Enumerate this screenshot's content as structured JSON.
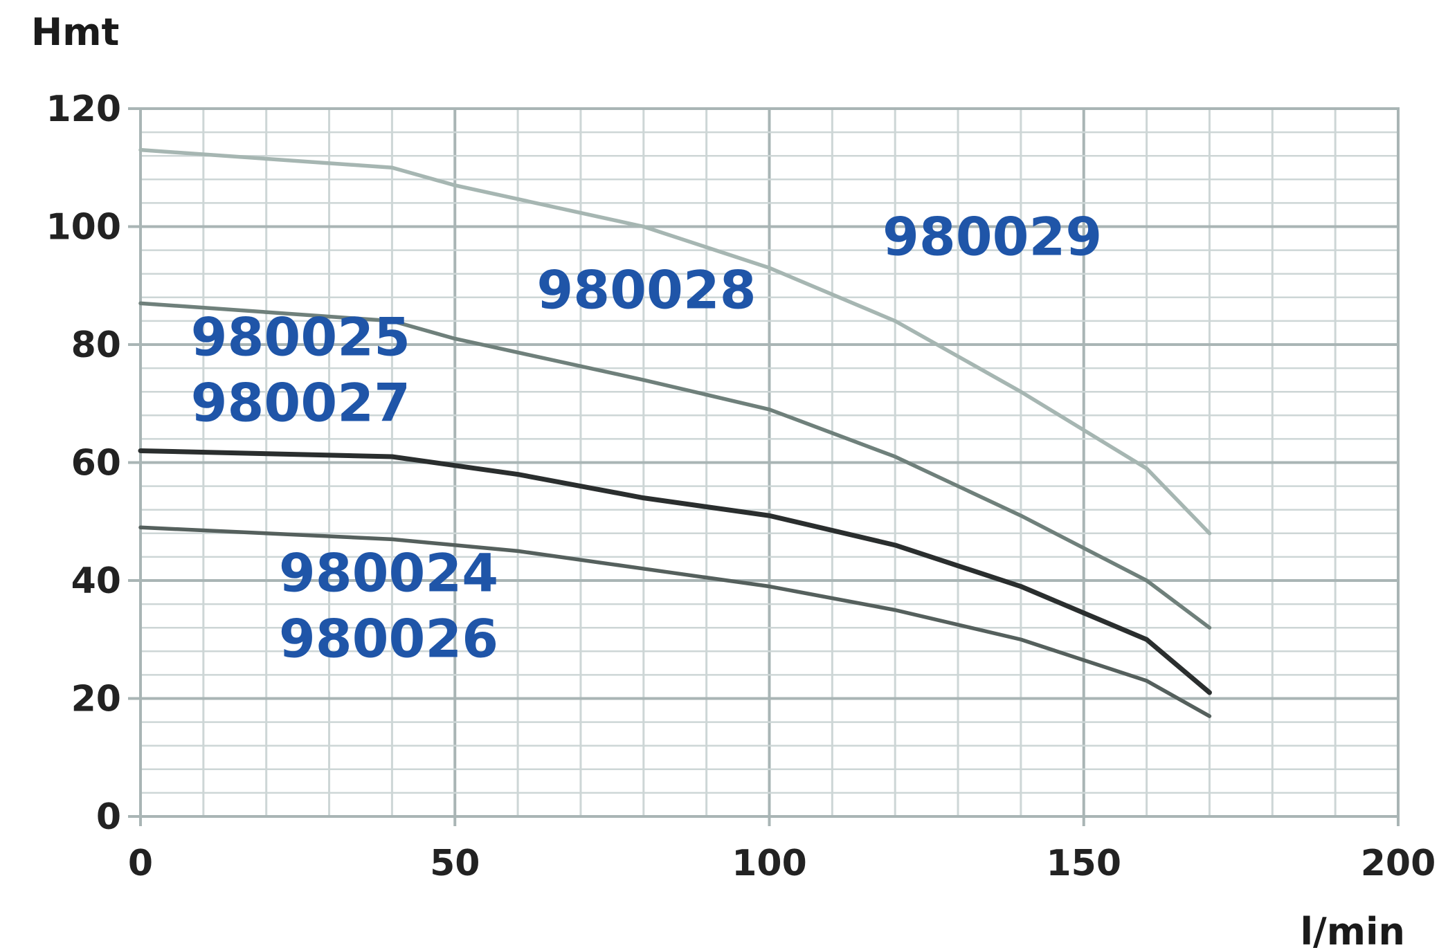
{
  "chart_data": {
    "type": "line",
    "title": "",
    "xlabel": "l/min",
    "ylabel": "Hmt",
    "xlim": [
      0,
      200
    ],
    "ylim": [
      0,
      120
    ],
    "x_ticks": [
      "0",
      "50",
      "100",
      "150",
      "200"
    ],
    "y_ticks": [
      "0",
      "20",
      "40",
      "60",
      "80",
      "100",
      "120"
    ],
    "grid": true,
    "colors": {
      "grid_major": "#a9b5b5",
      "grid_minor": "#cdd6d6",
      "label": "#1f55a8"
    },
    "series": [
      {
        "labels": [
          "980029"
        ],
        "color": "#a6b6b2",
        "x": [
          0,
          40,
          50,
          80,
          100,
          120,
          140,
          160,
          170
        ],
        "y": [
          113,
          110,
          107,
          100,
          93,
          84,
          72,
          59,
          48
        ]
      },
      {
        "labels": [
          "980028"
        ],
        "color": "#6f807b",
        "x": [
          0,
          40,
          50,
          80,
          100,
          120,
          140,
          160,
          170
        ],
        "y": [
          87,
          84,
          81,
          74,
          69,
          61,
          51,
          40,
          32
        ]
      },
      {
        "labels": [
          "980025",
          "980027"
        ],
        "color": "#2a2e2e",
        "x": [
          0,
          40,
          60,
          80,
          100,
          120,
          140,
          160,
          170
        ],
        "y": [
          62,
          61,
          58,
          54,
          51,
          46,
          39,
          30,
          21
        ]
      },
      {
        "labels": [
          "980024",
          "980026"
        ],
        "color": "#55605d",
        "x": [
          0,
          40,
          60,
          80,
          100,
          120,
          140,
          160,
          170
        ],
        "y": [
          49,
          47,
          45,
          42,
          39,
          35,
          30,
          23,
          17
        ]
      }
    ]
  }
}
